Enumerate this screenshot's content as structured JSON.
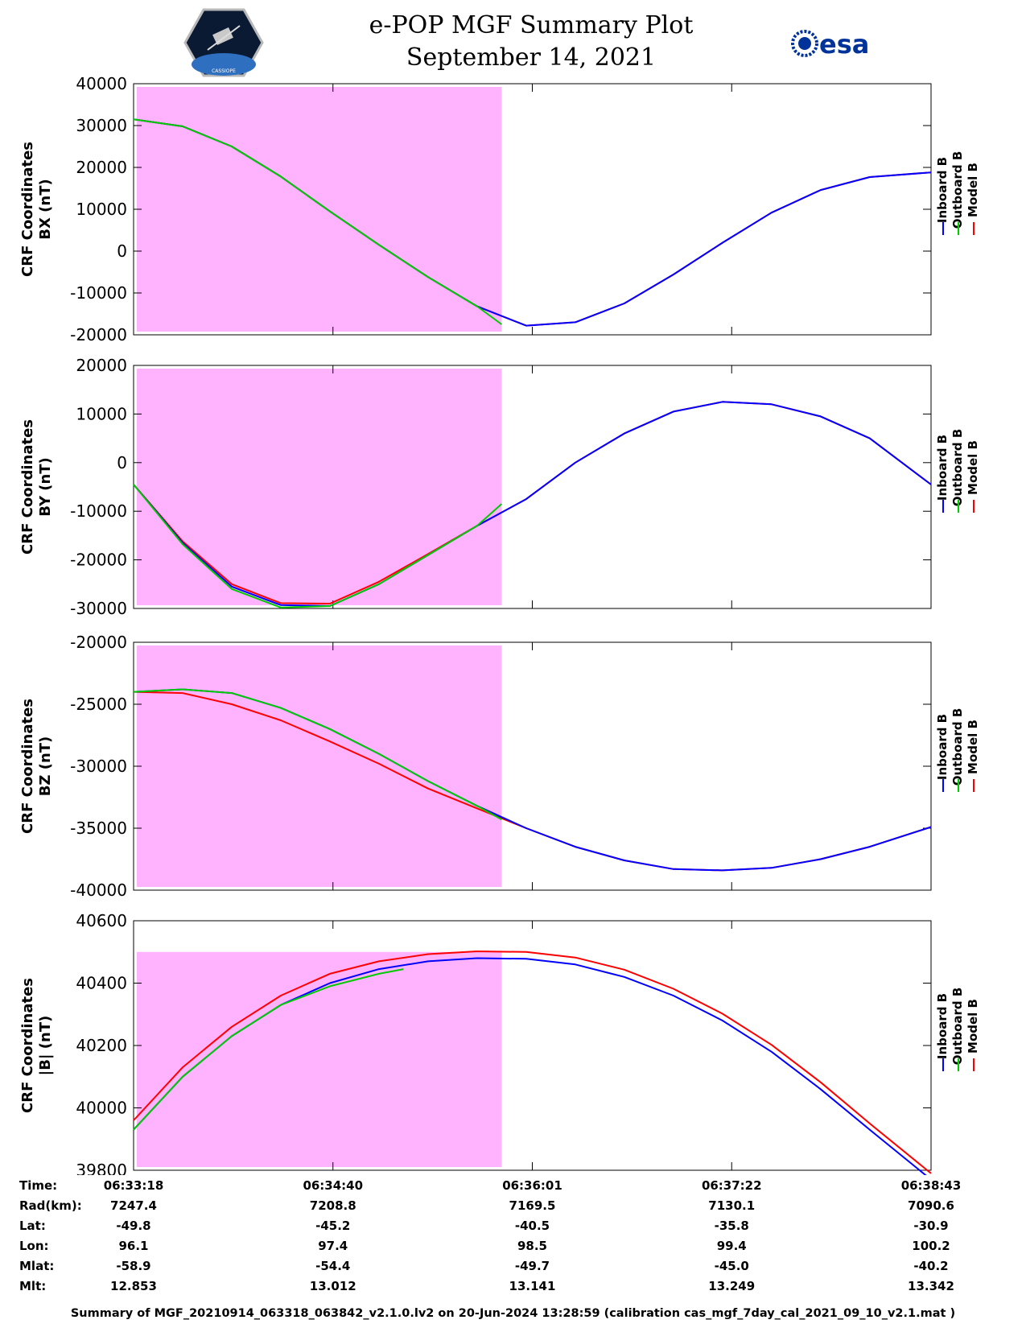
{
  "header": {
    "title": "e-POP MGF Summary Plot",
    "date": "September 14, 2021",
    "logo_left_text": "CASSIOPE",
    "logo_right_text": "esa"
  },
  "colors": {
    "inboard": "#0000ff",
    "outboard": "#00cc00",
    "model": "#ff0000",
    "shade": "#ffb3ff"
  },
  "legend": [
    "Inboard B",
    "Outboard B",
    "Model B"
  ],
  "chart_data": [
    {
      "type": "line",
      "ylabel": [
        "CRF Coordinates",
        "BX (nT)"
      ],
      "ylim": [
        -20000,
        40000
      ],
      "yticks": [
        40000,
        30000,
        20000,
        10000,
        0,
        -10000,
        -20000
      ],
      "xlim_seconds_after_063318": [
        0,
        325
      ],
      "shaded_interval_seconds_after_063318": [
        0,
        150
      ],
      "series": [
        {
          "name": "Inboard B",
          "x": [
            0,
            20,
            40,
            60,
            80,
            100,
            120,
            140,
            160,
            180,
            200,
            220,
            240,
            260,
            280,
            300,
            325
          ],
          "values": [
            31500,
            29800,
            25000,
            17800,
            9500,
            1500,
            -6200,
            -13200,
            -17800,
            -17000,
            -12500,
            -5600,
            2000,
            9200,
            14600,
            17700,
            18800
          ]
        },
        {
          "name": "Outboard B",
          "x": [
            0,
            20,
            40,
            60,
            80,
            100,
            120,
            140,
            150
          ],
          "values": [
            31500,
            29800,
            25000,
            17800,
            9500,
            1500,
            -6200,
            -13200,
            -17500
          ]
        },
        {
          "name": "Model B",
          "x": [
            0,
            20,
            40,
            60,
            80,
            100,
            120,
            140,
            160,
            180,
            200,
            220,
            240,
            260,
            280,
            300,
            325
          ],
          "values": [
            31500,
            29800,
            25000,
            17800,
            9500,
            1500,
            -6200,
            -13200,
            -17800,
            -17000,
            -12500,
            -5600,
            2000,
            9200,
            14600,
            17700,
            18800
          ]
        }
      ]
    },
    {
      "type": "line",
      "ylabel": [
        "CRF Coordinates",
        "BY (nT)"
      ],
      "ylim": [
        -30000,
        20000
      ],
      "yticks": [
        20000,
        10000,
        0,
        -10000,
        -20000,
        -30000
      ],
      "xlim_seconds_after_063318": [
        0,
        325
      ],
      "shaded_interval_seconds_after_063318": [
        0,
        150
      ],
      "series": [
        {
          "name": "Inboard B",
          "x": [
            0,
            20,
            40,
            60,
            80,
            100,
            120,
            140,
            160,
            180,
            200,
            220,
            240,
            260,
            280,
            300,
            325
          ],
          "values": [
            -4500,
            -16500,
            -25500,
            -29300,
            -29500,
            -25000,
            -19000,
            -13000,
            -7500,
            0,
            6000,
            10500,
            12500,
            12000,
            9500,
            5000,
            -4500
          ]
        },
        {
          "name": "Outboard B",
          "x": [
            0,
            20,
            40,
            60,
            80,
            100,
            120,
            140,
            150
          ],
          "values": [
            -4500,
            -16800,
            -26000,
            -29800,
            -29500,
            -25000,
            -19000,
            -13000,
            -8500
          ]
        },
        {
          "name": "Model B",
          "x": [
            0,
            20,
            40,
            60,
            80,
            100,
            120,
            140,
            160,
            180,
            200,
            220,
            240,
            260,
            280,
            300,
            325
          ],
          "values": [
            -4500,
            -16200,
            -25000,
            -28900,
            -29000,
            -24500,
            -18800,
            -13000,
            -7500,
            0,
            6000,
            10500,
            12500,
            12000,
            9500,
            5000,
            -4500
          ]
        }
      ]
    },
    {
      "type": "line",
      "ylabel": [
        "CRF Coordinates",
        "BZ (nT)"
      ],
      "ylim": [
        -40000,
        -20000
      ],
      "yticks": [
        -20000,
        -25000,
        -30000,
        -35000,
        -40000
      ],
      "xlim_seconds_after_063318": [
        0,
        325
      ],
      "shaded_interval_seconds_after_063318": [
        0,
        150
      ],
      "series": [
        {
          "name": "Inboard B",
          "x": [
            0,
            20,
            40,
            60,
            80,
            100,
            120,
            140,
            160,
            180,
            200,
            220,
            240,
            260,
            280,
            300,
            325
          ],
          "values": [
            -24000,
            -23800,
            -24100,
            -25300,
            -27000,
            -29000,
            -31200,
            -33200,
            -35000,
            -36500,
            -37600,
            -38300,
            -38400,
            -38200,
            -37500,
            -36500,
            -34900
          ]
        },
        {
          "name": "Outboard B",
          "x": [
            0,
            20,
            40,
            60,
            80,
            100,
            120,
            140,
            150
          ],
          "values": [
            -24000,
            -23800,
            -24100,
            -25300,
            -27000,
            -29000,
            -31200,
            -33200,
            -34300
          ]
        },
        {
          "name": "Model B",
          "x": [
            0,
            20,
            40,
            60,
            80,
            100,
            120,
            140,
            160,
            180,
            200,
            220,
            240,
            260,
            280,
            300,
            325
          ],
          "values": [
            -24000,
            -24100,
            -25000,
            -26300,
            -28000,
            -29800,
            -31800,
            -33400,
            -35000,
            -36500,
            -37600,
            -38300,
            -38400,
            -38200,
            -37500,
            -36500,
            -34900
          ]
        }
      ]
    },
    {
      "type": "line",
      "ylabel": [
        "CRF Coordinates",
        "|B| (nT)"
      ],
      "ylim": [
        39800,
        40600
      ],
      "yticks": [
        40600,
        40400,
        40200,
        40000,
        39800
      ],
      "xlim_seconds_after_063318": [
        0,
        325
      ],
      "shaded_interval_seconds_after_063318": [
        0,
        150
      ],
      "series": [
        {
          "name": "Inboard B",
          "x": [
            0,
            20,
            40,
            60,
            80,
            100,
            120,
            140,
            160,
            180,
            200,
            220,
            240,
            260,
            280,
            300,
            325
          ],
          "values": [
            39930,
            40100,
            40230,
            40330,
            40400,
            40445,
            40470,
            40480,
            40478,
            40460,
            40420,
            40360,
            40280,
            40180,
            40060,
            39930,
            39770
          ]
        },
        {
          "name": "Outboard B",
          "x": [
            0,
            20,
            40,
            60,
            80,
            100,
            110
          ],
          "values": [
            39930,
            40100,
            40230,
            40330,
            40390,
            40430,
            40445
          ]
        },
        {
          "name": "Model B",
          "x": [
            0,
            20,
            40,
            60,
            80,
            100,
            120,
            140,
            160,
            180,
            200,
            220,
            240,
            260,
            280,
            300,
            325
          ],
          "values": [
            39960,
            40130,
            40260,
            40360,
            40430,
            40470,
            40493,
            40502,
            40500,
            40482,
            40443,
            40382,
            40302,
            40202,
            40082,
            39950,
            39790
          ]
        }
      ]
    }
  ],
  "table": {
    "labels": [
      "Time:",
      "Rad(km):",
      "Lat:",
      "Lon:",
      "Mlat:",
      "Mlt:"
    ],
    "columns": [
      [
        "06:33:18",
        "7247.4",
        "-49.8",
        "96.1",
        "-58.9",
        "12.853"
      ],
      [
        "06:34:40",
        "7208.8",
        "-45.2",
        "97.4",
        "-54.4",
        "13.012"
      ],
      [
        "06:36:01",
        "7169.5",
        "-40.5",
        "98.5",
        "-49.7",
        "13.141"
      ],
      [
        "06:37:22",
        "7130.1",
        "-35.8",
        "99.4",
        "-45.0",
        "13.249"
      ],
      [
        "06:38:43",
        "7090.6",
        "-30.9",
        "100.2",
        "-40.2",
        "13.342"
      ]
    ]
  },
  "footer": "Summary of MGF_20210914_063318_063842_v2.1.0.lv2 on 20-Jun-2024 13:28:59 (calibration cas_mgf_7day_cal_2021_09_10_v2.1.mat )"
}
